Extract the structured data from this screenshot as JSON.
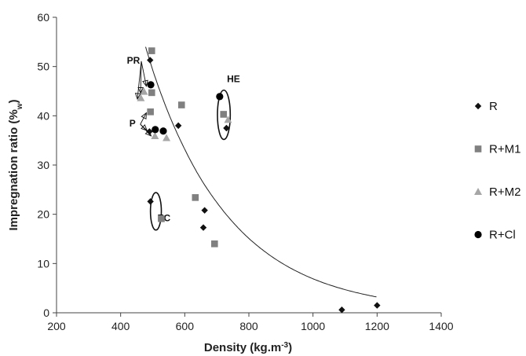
{
  "chart_data": {
    "type": "scatter",
    "title": "",
    "xlabel": "Density (kg.m",
    "xlabel_sup": "-3",
    "xlabel_suffix": ")",
    "ylabel": "Impregnation ratio (%",
    "ylabel_sub": "w",
    "ylabel_suffix": ")",
    "xlim": [
      200,
      1400
    ],
    "ylim": [
      0,
      60
    ],
    "xticks": [
      "200",
      "400",
      "600",
      "800",
      "1000",
      "1200",
      "1400"
    ],
    "yticks": [
      "0",
      "10",
      "20",
      "30",
      "40",
      "50",
      "60"
    ],
    "grid": false,
    "legend_position": "right",
    "series": [
      {
        "name": "R",
        "marker": "diamond",
        "color": "#111111",
        "points": [
          [
            492,
            51.3
          ],
          [
            490,
            36.8
          ],
          [
            493,
            22.6
          ],
          [
            580,
            38.0
          ],
          [
            730,
            37.5
          ],
          [
            658,
            17.3
          ],
          [
            662,
            20.8
          ],
          [
            1090,
            0.6
          ],
          [
            1200,
            1.5
          ]
        ]
      },
      {
        "name": "R+M1",
        "marker": "square",
        "color": "#808080",
        "points": [
          [
            497,
            53.2
          ],
          [
            497,
            44.7
          ],
          [
            493,
            40.8
          ],
          [
            590,
            42.2
          ],
          [
            721,
            40.3
          ],
          [
            633,
            23.4
          ],
          [
            527,
            19.1
          ],
          [
            693,
            14.0
          ]
        ]
      },
      {
        "name": "R+M2",
        "marker": "triangle",
        "color": "#a6a6a6",
        "points": [
          [
            463,
            43.6
          ],
          [
            473,
            44.9
          ],
          [
            507,
            35.9
          ],
          [
            543,
            35.5
          ],
          [
            735,
            39.2
          ]
        ]
      },
      {
        "name": "R+Cl",
        "marker": "circle",
        "color": "#000000",
        "points": [
          [
            494,
            46.3
          ],
          [
            508,
            37.2
          ],
          [
            533,
            36.9
          ],
          [
            709,
            43.9
          ]
        ]
      }
    ],
    "trendline": {
      "type": "exponential",
      "x_range": [
        478,
        1200
      ],
      "points": [
        [
          478,
          54.0
        ],
        [
          500,
          49.3
        ],
        [
          550,
          40.4
        ],
        [
          600,
          33.2
        ],
        [
          650,
          27.2
        ],
        [
          700,
          22.4
        ],
        [
          750,
          18.4
        ],
        [
          800,
          15.1
        ],
        [
          900,
          10.2
        ],
        [
          1000,
          6.9
        ],
        [
          1100,
          4.7
        ],
        [
          1200,
          3.2
        ]
      ]
    },
    "annotations": [
      {
        "label": "PR",
        "anchor": [
          440,
          50.6
        ],
        "arrows_to": [
          [
            490,
            46.0
          ],
          [
            472,
            44.6
          ],
          [
            462,
            43.4
          ]
        ]
      },
      {
        "label": "P",
        "anchor": [
          437,
          37.8
        ],
        "arrows_to": [
          [
            490,
            40.6
          ],
          [
            492,
            37.0
          ],
          [
            505,
            35.9
          ]
        ]
      },
      {
        "label": "HE",
        "anchor": [
          752,
          46.8
        ],
        "ellipse_center": [
          722,
          40.2
        ],
        "ellipse_radii": [
          20,
          5.0
        ]
      },
      {
        "label": "EC",
        "anchor": [
          535,
          18.6
        ],
        "ellipse_center": [
          510,
          20.6
        ],
        "ellipse_radii": [
          17,
          3.8
        ]
      }
    ]
  }
}
